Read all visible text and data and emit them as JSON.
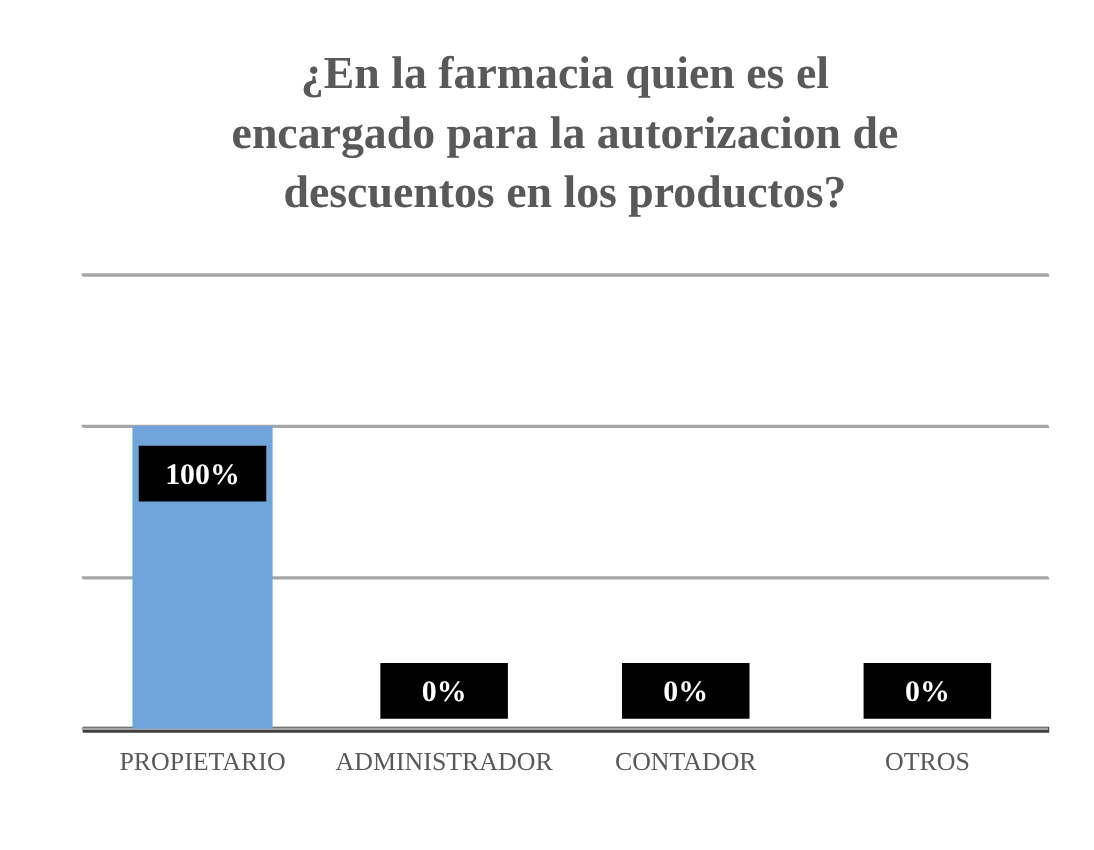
{
  "chart_data": {
    "type": "bar",
    "title": "¿En la farmacia quien es el encargado para la autorizacion de descuentos en los productos?",
    "categories": [
      "PROPIETARIO",
      "ADMINISTRADOR",
      "CONTADOR",
      "OTROS"
    ],
    "values": [
      100,
      0,
      0,
      0
    ],
    "color": "#6fa5db",
    "value_labels": [
      "100%",
      "0%",
      "0%",
      "0%"
    ],
    "ylim": [
      0,
      150
    ],
    "yticks": [
      0,
      50,
      100,
      150
    ],
    "grid": "y",
    "tick_labels": "x"
  }
}
